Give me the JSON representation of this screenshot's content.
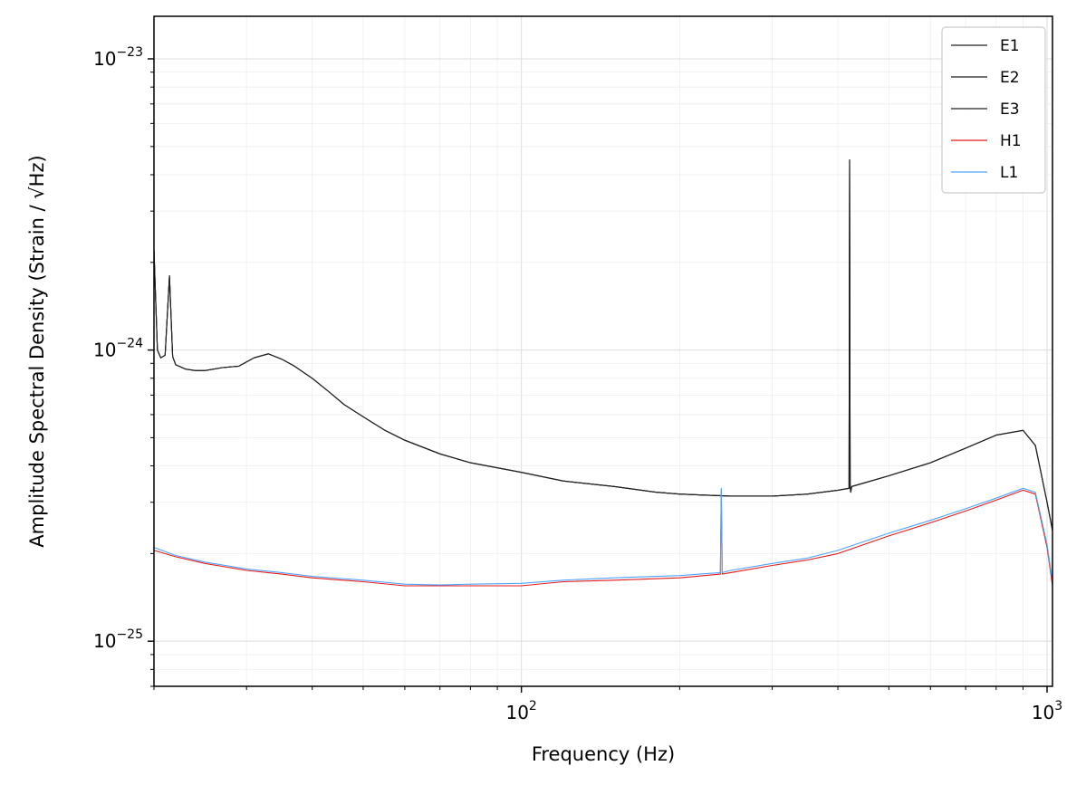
{
  "chart_data": {
    "type": "line",
    "title": "",
    "xlabel": "Frequency (Hz)",
    "ylabel": "Amplitude Spectral Density (Strain / √Hz)",
    "xscale": "log",
    "yscale": "log",
    "xlim": [
      20,
      1024
    ],
    "ylim": [
      7e-26,
      1.4e-23
    ],
    "grid": "both major and minor, light gray",
    "legend_position": "top-right",
    "x_major_ticks": [
      {
        "value": 100,
        "base": "10",
        "exp": "2"
      },
      {
        "value": 1000,
        "base": "10",
        "exp": "3"
      }
    ],
    "y_major_ticks": [
      {
        "value": 1e-25,
        "base": "10",
        "exp": "−25"
      },
      {
        "value": 1e-24,
        "base": "10",
        "exp": "−24"
      },
      {
        "value": 1e-23,
        "base": "10",
        "exp": "−23"
      }
    ],
    "series": [
      {
        "name": "E1",
        "color": "#222222",
        "x": [
          20,
          20.3,
          20.6,
          21,
          21.4,
          21.7,
          22,
          23,
          24,
          25,
          27,
          29,
          31,
          33,
          35,
          37,
          40,
          43,
          46,
          50,
          55,
          60,
          70,
          80,
          100,
          120,
          150,
          180,
          200,
          250,
          300,
          350,
          400,
          420,
          421,
          422,
          423,
          425,
          450,
          500,
          600,
          700,
          800,
          900,
          950,
          1000,
          1024
        ],
        "y": [
          2.2e-24,
          1e-24,
          9.4e-25,
          9.6e-25,
          1.8e-24,
          9.5e-25,
          8.9e-25,
          8.6e-25,
          8.5e-25,
          8.5e-25,
          8.7e-25,
          8.8e-25,
          9.4e-25,
          9.7e-25,
          9.3e-25,
          8.8e-25,
          8e-25,
          7.2e-25,
          6.5e-25,
          5.9e-25,
          5.3e-25,
          4.9e-25,
          4.4e-25,
          4.1e-25,
          3.8e-25,
          3.55e-25,
          3.4e-25,
          3.25e-25,
          3.2e-25,
          3.15e-25,
          3.15e-25,
          3.2e-25,
          3.3e-25,
          3.35e-25,
          4.5e-24,
          3.4e-25,
          3.25e-25,
          3.4e-25,
          3.5e-25,
          3.7e-25,
          4.1e-25,
          4.6e-25,
          5.1e-25,
          5.3e-25,
          4.7e-25,
          3e-25,
          2.4e-25
        ]
      },
      {
        "name": "E2",
        "color": "#222222",
        "x": [
          20,
          20.3,
          20.6,
          21,
          21.4,
          21.7,
          22,
          23,
          24,
          25,
          27,
          29,
          31,
          33,
          35,
          37,
          40,
          43,
          46,
          50,
          55,
          60,
          70,
          80,
          100,
          120,
          150,
          180,
          200,
          250,
          300,
          350,
          400,
          420,
          421,
          422,
          423,
          425,
          450,
          500,
          600,
          700,
          800,
          900,
          950,
          1000,
          1024
        ],
        "y": [
          2.2e-24,
          1e-24,
          9.4e-25,
          9.6e-25,
          1.8e-24,
          9.5e-25,
          8.9e-25,
          8.6e-25,
          8.5e-25,
          8.5e-25,
          8.7e-25,
          8.8e-25,
          9.4e-25,
          9.7e-25,
          9.3e-25,
          8.8e-25,
          8e-25,
          7.2e-25,
          6.5e-25,
          5.9e-25,
          5.3e-25,
          4.9e-25,
          4.4e-25,
          4.1e-25,
          3.8e-25,
          3.55e-25,
          3.4e-25,
          3.25e-25,
          3.2e-25,
          3.15e-25,
          3.15e-25,
          3.2e-25,
          3.3e-25,
          3.35e-25,
          4.5e-24,
          3.4e-25,
          3.25e-25,
          3.4e-25,
          3.5e-25,
          3.7e-25,
          4.1e-25,
          4.6e-25,
          5.1e-25,
          5.3e-25,
          4.7e-25,
          3e-25,
          2.4e-25
        ]
      },
      {
        "name": "E3",
        "color": "#222222",
        "x": [
          20,
          20.3,
          20.6,
          21,
          21.4,
          21.7,
          22,
          23,
          24,
          25,
          27,
          29,
          31,
          33,
          35,
          37,
          40,
          43,
          46,
          50,
          55,
          60,
          70,
          80,
          100,
          120,
          150,
          180,
          200,
          250,
          300,
          350,
          400,
          420,
          421,
          422,
          423,
          425,
          450,
          500,
          600,
          700,
          800,
          900,
          950,
          1000,
          1024
        ],
        "y": [
          2.2e-24,
          1e-24,
          9.4e-25,
          9.6e-25,
          1.8e-24,
          9.5e-25,
          8.9e-25,
          8.6e-25,
          8.5e-25,
          8.5e-25,
          8.7e-25,
          8.8e-25,
          9.4e-25,
          9.7e-25,
          9.3e-25,
          8.8e-25,
          8e-25,
          7.2e-25,
          6.5e-25,
          5.9e-25,
          5.3e-25,
          4.9e-25,
          4.4e-25,
          4.1e-25,
          3.8e-25,
          3.55e-25,
          3.4e-25,
          3.25e-25,
          3.2e-25,
          3.15e-25,
          3.15e-25,
          3.2e-25,
          3.3e-25,
          3.35e-25,
          4.5e-24,
          3.4e-25,
          3.25e-25,
          3.4e-25,
          3.5e-25,
          3.7e-25,
          4.1e-25,
          4.6e-25,
          5.1e-25,
          5.3e-25,
          4.7e-25,
          3e-25,
          2.4e-25
        ]
      },
      {
        "name": "H1",
        "color": "#e41a1c",
        "x": [
          20,
          22,
          25,
          30,
          35,
          40,
          50,
          60,
          70,
          80,
          100,
          120,
          150,
          200,
          239,
          240,
          241,
          250,
          300,
          350,
          400,
          500,
          600,
          700,
          800,
          900,
          950,
          1000,
          1024
        ],
        "y": [
          2.05e-25,
          1.95e-25,
          1.85e-25,
          1.75e-25,
          1.7e-25,
          1.65e-25,
          1.6e-25,
          1.55e-25,
          1.55e-25,
          1.55e-25,
          1.55e-25,
          1.6e-25,
          1.62e-25,
          1.65e-25,
          1.7e-25,
          3.3e-25,
          1.7e-25,
          1.72e-25,
          1.82e-25,
          1.9e-25,
          2e-25,
          2.3e-25,
          2.55e-25,
          2.8e-25,
          3.05e-25,
          3.3e-25,
          3.2e-25,
          2.1e-25,
          1.55e-25
        ]
      },
      {
        "name": "L1",
        "color": "#4fa3ff",
        "x": [
          20,
          22,
          25,
          30,
          35,
          40,
          50,
          60,
          70,
          80,
          100,
          120,
          150,
          200,
          239,
          240,
          241,
          250,
          300,
          350,
          400,
          500,
          600,
          700,
          800,
          900,
          950,
          1000,
          1024
        ],
        "y": [
          2.1e-25,
          1.97e-25,
          1.87e-25,
          1.77e-25,
          1.72e-25,
          1.67e-25,
          1.62e-25,
          1.57e-25,
          1.56e-25,
          1.57e-25,
          1.58e-25,
          1.62e-25,
          1.65e-25,
          1.68e-25,
          1.72e-25,
          3.35e-25,
          1.72e-25,
          1.75e-25,
          1.85e-25,
          1.93e-25,
          2.05e-25,
          2.35e-25,
          2.6e-25,
          2.85e-25,
          3.1e-25,
          3.35e-25,
          3.25e-25,
          2.15e-25,
          1.6e-25
        ]
      }
    ]
  }
}
